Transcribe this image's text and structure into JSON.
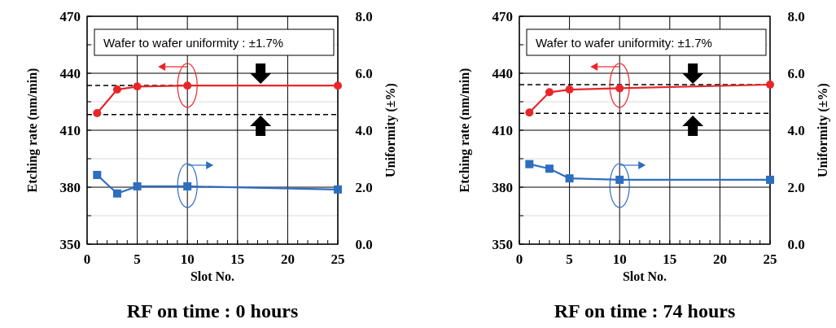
{
  "chart_data": [
    {
      "type": "line",
      "title": "RF on time : 0 hours",
      "xlabel": "Slot No.",
      "ylabel": "Etching rate (nm/min)",
      "y2label": "Uniformity (±%)",
      "annotations": [
        "Wafer to wafer uniformity : ±1.7%"
      ],
      "xlim": [
        0,
        25
      ],
      "xticks": [
        0,
        {
          "value": 1,
          "label": null
        },
        {
          "value": 2,
          "label": null
        },
        {
          "value": 3,
          "label": null
        },
        {
          "value": 4,
          "label": null
        },
        5,
        {
          "value": 6,
          "label": null
        },
        {
          "value": 7,
          "label": null
        },
        {
          "value": 8,
          "label": null
        },
        {
          "value": 9,
          "label": null
        },
        10,
        {
          "value": 11,
          "label": null
        },
        {
          "value": 12,
          "label": null
        },
        {
          "value": 13,
          "label": null
        },
        {
          "value": 14,
          "label": null
        },
        15,
        {
          "value": 16,
          "label": null
        },
        {
          "value": 17,
          "label": null
        },
        {
          "value": 18,
          "label": null
        },
        {
          "value": 19,
          "label": null
        },
        20,
        {
          "value": 21,
          "label": null
        },
        {
          "value": 22,
          "label": null
        },
        {
          "value": 23,
          "label": null
        },
        {
          "value": 24,
          "label": null
        },
        25
      ],
      "ylim": [
        350,
        470
      ],
      "yticks": [
        350,
        {
          "value": 365,
          "label": null
        },
        380,
        {
          "value": 395,
          "label": null
        },
        410,
        {
          "value": 425,
          "label": null
        },
        440,
        {
          "value": 455,
          "label": null
        },
        470
      ],
      "y2lim": [
        0,
        8
      ],
      "y2ticks": [
        {
          "value": 0,
          "label": "0.0"
        },
        {
          "value": 2,
          "label": "2.0"
        },
        {
          "value": 4,
          "label": "4.0"
        },
        {
          "value": 6,
          "label": "6.0"
        },
        {
          "value": 8,
          "label": "8.0"
        }
      ],
      "grid": true,
      "x": [
        1,
        3,
        5,
        10,
        25
      ],
      "series": [
        {
          "color": "#e8262a",
          "marker": "circle",
          "values": [
            419,
            431.4,
            433,
            433.5,
            433.5
          ]
        },
        {
          "color": "#2e6ebf",
          "marker": "square",
          "axis": "y2",
          "values": [
            2.43,
            1.78,
            2.03,
            2.03,
            1.92
          ]
        }
      ],
      "ref_lines": [
        {
          "axis": "y",
          "value": 433.6,
          "color": "#000000",
          "line_style": "dashed"
        },
        {
          "axis": "y",
          "value": 418.3,
          "color": "#000000",
          "line_style": "dashed"
        }
      ]
    },
    {
      "type": "line",
      "title": "RF on time : 74 hours",
      "xlabel": "Slot No.",
      "ylabel": "Etching rate (nm/min)",
      "y2label": "Uniformity (±%)",
      "annotations": [
        "Wafer to wafer uniformity: ±1.7%"
      ],
      "xlim": [
        0,
        25
      ],
      "xticks": [
        0,
        {
          "value": 1,
          "label": null
        },
        {
          "value": 2,
          "label": null
        },
        {
          "value": 3,
          "label": null
        },
        {
          "value": 4,
          "label": null
        },
        5,
        {
          "value": 6,
          "label": null
        },
        {
          "value": 7,
          "label": null
        },
        {
          "value": 8,
          "label": null
        },
        {
          "value": 9,
          "label": null
        },
        10,
        {
          "value": 11,
          "label": null
        },
        {
          "value": 12,
          "label": null
        },
        {
          "value": 13,
          "label": null
        },
        {
          "value": 14,
          "label": null
        },
        15,
        {
          "value": 16,
          "label": null
        },
        {
          "value": 17,
          "label": null
        },
        {
          "value": 18,
          "label": null
        },
        {
          "value": 19,
          "label": null
        },
        20,
        {
          "value": 21,
          "label": null
        },
        {
          "value": 22,
          "label": null
        },
        {
          "value": 23,
          "label": null
        },
        {
          "value": 24,
          "label": null
        },
        25
      ],
      "ylim": [
        350,
        470
      ],
      "yticks": [
        350,
        {
          "value": 365,
          "label": null
        },
        380,
        {
          "value": 395,
          "label": null
        },
        410,
        {
          "value": 425,
          "label": null
        },
        440,
        {
          "value": 455,
          "label": null
        },
        470
      ],
      "y2lim": [
        0,
        8
      ],
      "y2ticks": [
        {
          "value": 0,
          "label": "0.0"
        },
        {
          "value": 2,
          "label": "2.0"
        },
        {
          "value": 4,
          "label": "4.0"
        },
        {
          "value": 6,
          "label": "6.0"
        },
        {
          "value": 8,
          "label": "8.0"
        }
      ],
      "grid": true,
      "x": [
        1,
        3,
        5,
        10,
        25
      ],
      "series": [
        {
          "color": "#e8262a",
          "marker": "circle",
          "values": [
            419.3,
            430,
            431.4,
            432.1,
            434
          ]
        },
        {
          "color": "#2e6ebf",
          "marker": "square",
          "axis": "y2",
          "values": [
            2.81,
            2.65,
            2.31,
            2.26,
            2.26
          ]
        }
      ],
      "ref_lines": [
        {
          "axis": "y",
          "value": 434,
          "color": "#000000",
          "line_style": "dashed"
        },
        {
          "axis": "y",
          "value": 418.9,
          "color": "#000000",
          "line_style": "dashed"
        }
      ]
    }
  ]
}
